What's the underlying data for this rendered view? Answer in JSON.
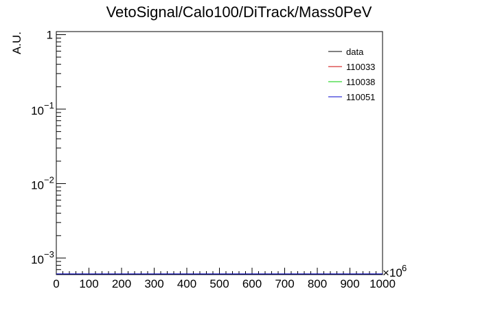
{
  "chart_data": {
    "type": "line",
    "title": "VetoSignal/Calo100/DiTrack/Mass0PeV",
    "ylabel": "A.U.",
    "xlabel": "",
    "x_scale_label": "×10",
    "x_scale_exponent": "6",
    "xlim": [
      0,
      1000
    ],
    "ylim": [
      0.0006,
      1.1
    ],
    "y_scale": "log",
    "x_ticks": [
      "0",
      "100",
      "200",
      "300",
      "400",
      "500",
      "600",
      "700",
      "800",
      "900",
      "1000"
    ],
    "y_ticks": [
      {
        "value": 1,
        "base": "1",
        "exp": ""
      },
      {
        "value": 0.1,
        "base": "10",
        "exp": "−1"
      },
      {
        "value": 0.01,
        "base": "10",
        "exp": "−2"
      },
      {
        "value": 0.001,
        "base": "10",
        "exp": "−3"
      }
    ],
    "grid": false,
    "legend_position": "top-right",
    "series": [
      {
        "name": "data",
        "color": "#000000",
        "values": []
      },
      {
        "name": "110033",
        "color": "#cc0000",
        "values": []
      },
      {
        "name": "110038",
        "color": "#00cc00",
        "values": []
      },
      {
        "name": "110051",
        "color": "#0000cc",
        "values": []
      }
    ]
  }
}
